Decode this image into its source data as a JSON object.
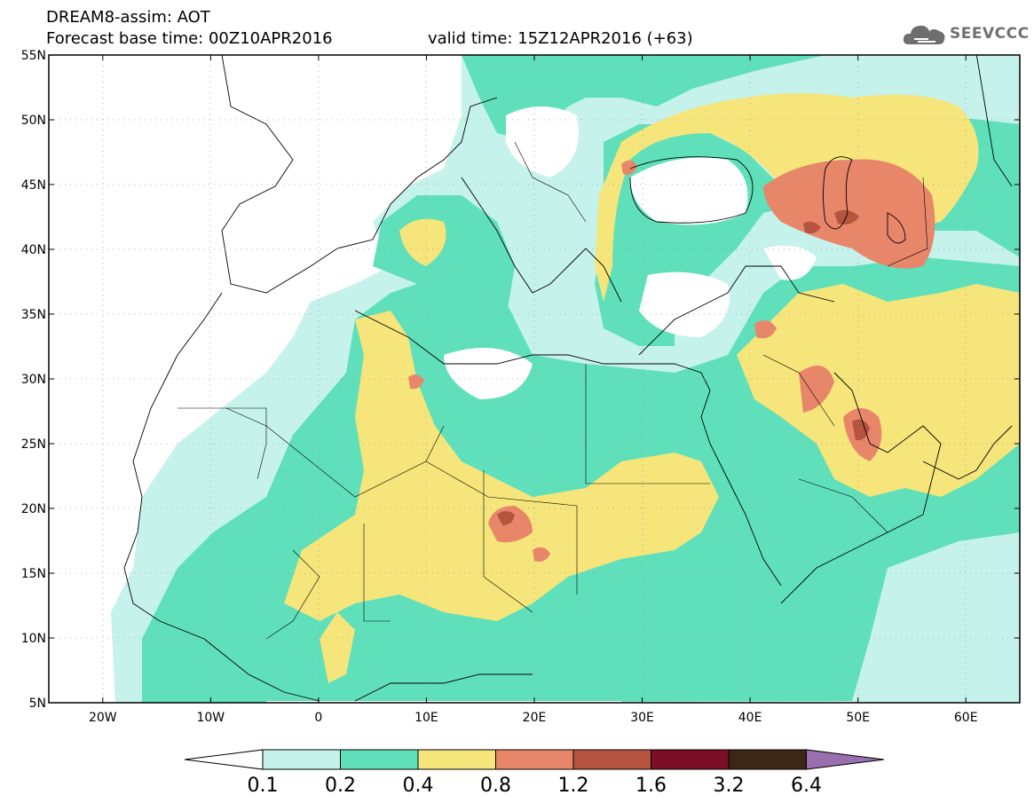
{
  "header": {
    "line1": "DREAM8-assim: AOT",
    "base_time": "Forecast base time: 00Z10APR2016",
    "valid_time": "valid time: 15Z12APR2016 (+63)"
  },
  "logo": {
    "text": "SEEVCCC",
    "icon": "cloud-icon"
  },
  "axes": {
    "lat_labels": [
      "55N",
      "50N",
      "45N",
      "40N",
      "35N",
      "30N",
      "25N",
      "20N",
      "15N",
      "10N",
      "5N"
    ],
    "lon_labels": [
      "20W",
      "10W",
      "0",
      "10E",
      "20E",
      "30E",
      "40E",
      "50E",
      "60E"
    ],
    "lat_range": [
      5,
      55
    ],
    "lon_range": [
      -25,
      65
    ]
  },
  "colorbar": {
    "labels": [
      "0.1",
      "0.2",
      "0.4",
      "0.8",
      "1.2",
      "1.6",
      "3.2",
      "6.4"
    ],
    "colors": [
      "#ffffff",
      "#c6f2ec",
      "#5fe0bb",
      "#f5e57a",
      "#e8866a",
      "#b5543f",
      "#7a0f25",
      "#3d2614",
      "#9a6fb0"
    ]
  },
  "chart_data": {
    "type": "heatmap",
    "title": "DREAM8-assim: AOT",
    "variable": "Aerosol optical thickness",
    "region": {
      "lon": [
        -25,
        65
      ],
      "lat": [
        5,
        55
      ]
    },
    "levels": [
      0.1,
      0.2,
      0.4,
      0.8,
      1.2,
      1.6,
      3.2,
      6.4
    ],
    "level_colors": {
      "0.1-0.2": "#c6f2ec",
      "0.2-0.4": "#5fe0bb",
      "0.4-0.8": "#f5e57a",
      "0.8-1.2": "#e8866a",
      "1.2-1.6": "#b5543f",
      "1.6-3.2": "#7a0f25",
      "3.2-6.4": "#3d2614",
      ">6.4": "#9a6fb0"
    },
    "grid": true
  }
}
